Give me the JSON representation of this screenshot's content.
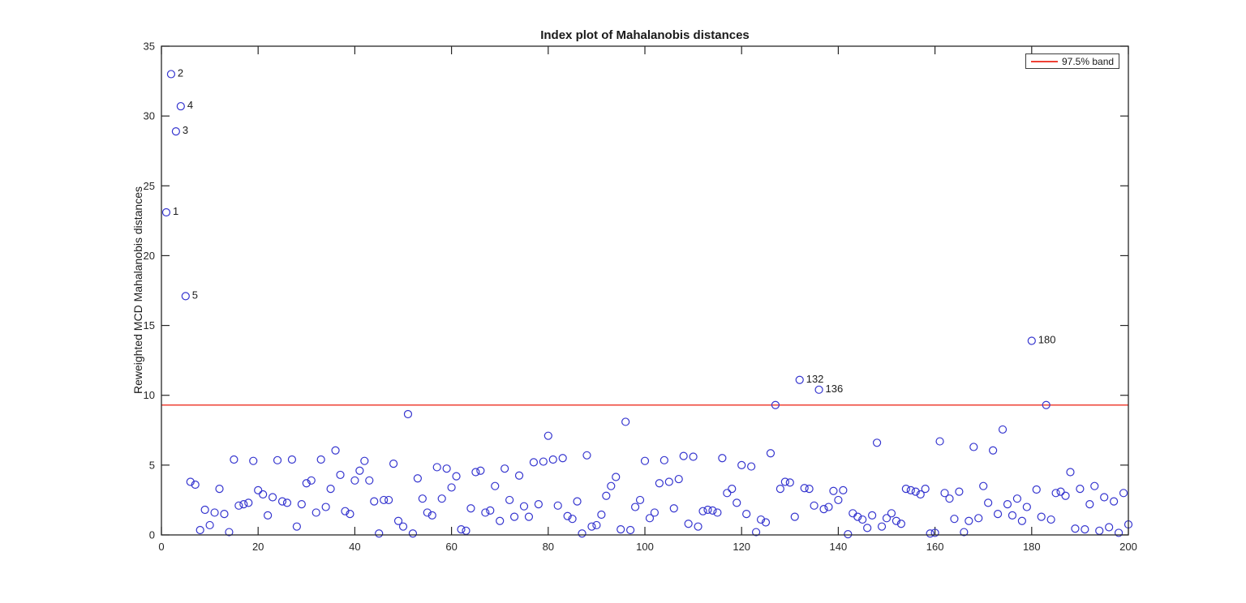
{
  "figure": {
    "title": "Index plot of Mahalanobis distances",
    "y_axis_label": "Reweighted MCD Mahalanobis distances",
    "legend": {
      "label": "97.5% band"
    }
  },
  "chart_data": {
    "type": "scatter",
    "title": "Index plot of Mahalanobis distances",
    "xlabel": "",
    "ylabel": "Reweighted MCD Mahalanobis distances",
    "xlim": [
      0,
      200
    ],
    "ylim": [
      0,
      35
    ],
    "xticks": [
      0,
      20,
      40,
      60,
      80,
      100,
      120,
      140,
      160,
      180,
      200
    ],
    "yticks": [
      0,
      5,
      10,
      15,
      20,
      25,
      30,
      35
    ],
    "grid": false,
    "legend_position": "top-right",
    "marker": {
      "shape": "open-circle",
      "color": "#3535cf"
    },
    "axis_color": "#262626",
    "threshold": {
      "value": 9.3,
      "color": "#ef4135",
      "legend_label": "97.5% band"
    },
    "annotations": [
      {
        "index": 1,
        "label": "1"
      },
      {
        "index": 2,
        "label": "2"
      },
      {
        "index": 3,
        "label": "3"
      },
      {
        "index": 4,
        "label": "4"
      },
      {
        "index": 5,
        "label": "5"
      },
      {
        "index": 132,
        "label": "132"
      },
      {
        "index": 136,
        "label": "136"
      },
      {
        "index": 180,
        "label": "180"
      }
    ],
    "points": [
      [
        1,
        23.1
      ],
      [
        2,
        33
      ],
      [
        3,
        28.9
      ],
      [
        4,
        30.7
      ],
      [
        5,
        17.1
      ],
      [
        6,
        3.8
      ],
      [
        7,
        3.6
      ],
      [
        8,
        0.35
      ],
      [
        9,
        1.8
      ],
      [
        10,
        0.7
      ],
      [
        11,
        1.6
      ],
      [
        12,
        3.3
      ],
      [
        13,
        1.5
      ],
      [
        14,
        0.2
      ],
      [
        15,
        5.4
      ],
      [
        16,
        2.1
      ],
      [
        17,
        2.2
      ],
      [
        18,
        2.3
      ],
      [
        19,
        5.3
      ],
      [
        20,
        3.2
      ],
      [
        21,
        2.9
      ],
      [
        22,
        1.4
      ],
      [
        23,
        2.7
      ],
      [
        24,
        5.35
      ],
      [
        25,
        2.4
      ],
      [
        26,
        2.3
      ],
      [
        27,
        5.4
      ],
      [
        28,
        0.6
      ],
      [
        29,
        2.2
      ],
      [
        30,
        3.7
      ],
      [
        31,
        3.9
      ],
      [
        32,
        1.6
      ],
      [
        33,
        5.4
      ],
      [
        34,
        2
      ],
      [
        35,
        3.3
      ],
      [
        36,
        6.05
      ],
      [
        37,
        4.3
      ],
      [
        38,
        1.7
      ],
      [
        39,
        1.5
      ],
      [
        40,
        3.9
      ],
      [
        41,
        4.6
      ],
      [
        42,
        5.3
      ],
      [
        43,
        3.9
      ],
      [
        44,
        2.4
      ],
      [
        45,
        0.1
      ],
      [
        46,
        2.5
      ],
      [
        47,
        2.5
      ],
      [
        48,
        5.1
      ],
      [
        49,
        1
      ],
      [
        50,
        0.6
      ],
      [
        51,
        8.65
      ],
      [
        52,
        0.1
      ],
      [
        53,
        4.05
      ],
      [
        54,
        2.6
      ],
      [
        55,
        1.6
      ],
      [
        56,
        1.4
      ],
      [
        57,
        4.85
      ],
      [
        58,
        2.6
      ],
      [
        59,
        4.75
      ],
      [
        60,
        3.4
      ],
      [
        61,
        4.2
      ],
      [
        62,
        0.4
      ],
      [
        63,
        0.3
      ],
      [
        64,
        1.9
      ],
      [
        65,
        4.5
      ],
      [
        66,
        4.6
      ],
      [
        67,
        1.6
      ],
      [
        68,
        1.75
      ],
      [
        69,
        3.5
      ],
      [
        70,
        1
      ],
      [
        71,
        4.75
      ],
      [
        72,
        2.5
      ],
      [
        73,
        1.3
      ],
      [
        74,
        4.25
      ],
      [
        75,
        2.05
      ],
      [
        76,
        1.3
      ],
      [
        77,
        5.2
      ],
      [
        78,
        2.2
      ],
      [
        79,
        5.25
      ],
      [
        80,
        7.1
      ],
      [
        81,
        5.4
      ],
      [
        82,
        2.1
      ],
      [
        83,
        5.5
      ],
      [
        84,
        1.35
      ],
      [
        85,
        1.15
      ],
      [
        86,
        2.4
      ],
      [
        87,
        0.1
      ],
      [
        88,
        5.7
      ],
      [
        89,
        0.6
      ],
      [
        90,
        0.7
      ],
      [
        91,
        1.45
      ],
      [
        92,
        2.8
      ],
      [
        93,
        3.5
      ],
      [
        94,
        4.15
      ],
      [
        95,
        0.4
      ],
      [
        96,
        8.1
      ],
      [
        97,
        0.35
      ],
      [
        98,
        2
      ],
      [
        99,
        2.5
      ],
      [
        100,
        5.3
      ],
      [
        101,
        1.2
      ],
      [
        102,
        1.6
      ],
      [
        103,
        3.7
      ],
      [
        104,
        5.35
      ],
      [
        105,
        3.8
      ],
      [
        106,
        1.9
      ],
      [
        107,
        4
      ],
      [
        108,
        5.65
      ],
      [
        109,
        0.8
      ],
      [
        110,
        5.6
      ],
      [
        111,
        0.6
      ],
      [
        112,
        1.7
      ],
      [
        113,
        1.8
      ],
      [
        114,
        1.75
      ],
      [
        115,
        1.6
      ],
      [
        116,
        5.5
      ],
      [
        117,
        3
      ],
      [
        118,
        3.3
      ],
      [
        119,
        2.3
      ],
      [
        120,
        5
      ],
      [
        121,
        1.5
      ],
      [
        122,
        4.9
      ],
      [
        123,
        0.2
      ],
      [
        124,
        1.1
      ],
      [
        125,
        0.9
      ],
      [
        126,
        5.85
      ],
      [
        127,
        9.3
      ],
      [
        128,
        3.3
      ],
      [
        129,
        3.8
      ],
      [
        130,
        3.75
      ],
      [
        131,
        1.3
      ],
      [
        132,
        11.1
      ],
      [
        133,
        3.35
      ],
      [
        134,
        3.3
      ],
      [
        135,
        2.1
      ],
      [
        136,
        10.4
      ],
      [
        137,
        1.85
      ],
      [
        138,
        2
      ],
      [
        139,
        3.15
      ],
      [
        140,
        2.5
      ],
      [
        141,
        3.2
      ],
      [
        142,
        0.05
      ],
      [
        143,
        1.55
      ],
      [
        144,
        1.3
      ],
      [
        145,
        1.1
      ],
      [
        146,
        0.5
      ],
      [
        147,
        1.4
      ],
      [
        148,
        6.6
      ],
      [
        149,
        0.6
      ],
      [
        150,
        1.2
      ],
      [
        151,
        1.55
      ],
      [
        152,
        1
      ],
      [
        153,
        0.8
      ],
      [
        154,
        3.3
      ],
      [
        155,
        3.2
      ],
      [
        156,
        3.1
      ],
      [
        157,
        2.9
      ],
      [
        158,
        3.3
      ],
      [
        159,
        0.1
      ],
      [
        160,
        0.15
      ],
      [
        161,
        6.7
      ],
      [
        162,
        3
      ],
      [
        163,
        2.6
      ],
      [
        164,
        1.15
      ],
      [
        165,
        3.1
      ],
      [
        166,
        0.2
      ],
      [
        167,
        1
      ],
      [
        168,
        6.3
      ],
      [
        169,
        1.2
      ],
      [
        170,
        3.5
      ],
      [
        171,
        2.3
      ],
      [
        172,
        6.05
      ],
      [
        173,
        1.5
      ],
      [
        174,
        7.55
      ],
      [
        175,
        2.2
      ],
      [
        176,
        1.4
      ],
      [
        177,
        2.6
      ],
      [
        178,
        1
      ],
      [
        179,
        2
      ],
      [
        180,
        13.9
      ],
      [
        181,
        3.25
      ],
      [
        182,
        1.3
      ],
      [
        183,
        9.3
      ],
      [
        184,
        1.1
      ],
      [
        185,
        3
      ],
      [
        186,
        3.1
      ],
      [
        187,
        2.8
      ],
      [
        188,
        4.5
      ],
      [
        189,
        0.45
      ],
      [
        190,
        3.3
      ],
      [
        191,
        0.4
      ],
      [
        192,
        2.2
      ],
      [
        193,
        3.5
      ],
      [
        194,
        0.3
      ],
      [
        195,
        2.7
      ],
      [
        196,
        0.55
      ],
      [
        197,
        2.4
      ],
      [
        198,
        0.15
      ],
      [
        199,
        3
      ],
      [
        200,
        0.75
      ]
    ]
  }
}
